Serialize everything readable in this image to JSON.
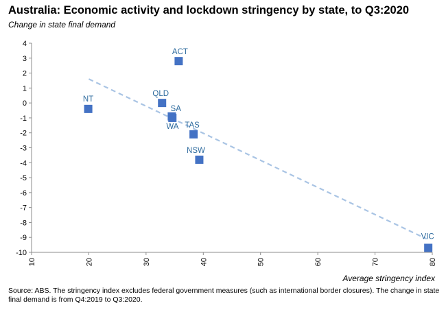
{
  "title": "Australia: Economic activity and lockdown stringency by state, to Q3:2020",
  "subtitle": "Change in state final demand",
  "source": "Source: ABS.  The stringency index excludes federal government measures (such as international border closures).  The change in state final demand is from Q4:2019 to Q3:2020.",
  "chart_data": {
    "type": "scatter",
    "title": "Australia: Economic activity and lockdown stringency by state, to Q3:2020",
    "ylabel": "Change in state final demand",
    "xlabel": "Average stringency index",
    "xlim": [
      10,
      80
    ],
    "ylim": [
      -10,
      4
    ],
    "x_ticks": [
      10,
      20,
      30,
      40,
      50,
      60,
      70,
      80
    ],
    "y_ticks": [
      4,
      3,
      2,
      1,
      0,
      -1,
      -2,
      -3,
      -4,
      -5,
      -6,
      -7,
      -8,
      -9,
      -10
    ],
    "grid": false,
    "marker_color": "#4472c4",
    "trendline_color": "#a9c4e4",
    "label_color": "#2e6b9e",
    "points": [
      {
        "label": "ACT",
        "x": 35.7,
        "y": 2.8
      },
      {
        "label": "NT",
        "x": 19.9,
        "y": -0.4
      },
      {
        "label": "QLD",
        "x": 32.8,
        "y": 0.0
      },
      {
        "label": "SA",
        "x": 34.6,
        "y": -1.0
      },
      {
        "label": "WA",
        "x": 34.5,
        "y": -0.9
      },
      {
        "label": "TAS",
        "x": 38.3,
        "y": -2.1
      },
      {
        "label": "NSW",
        "x": 39.3,
        "y": -3.8
      },
      {
        "label": "VIC",
        "x": 79.3,
        "y": -9.7
      }
    ],
    "trendline": {
      "x": [
        20,
        79
      ],
      "y": [
        1.6,
        -9.1
      ]
    }
  }
}
